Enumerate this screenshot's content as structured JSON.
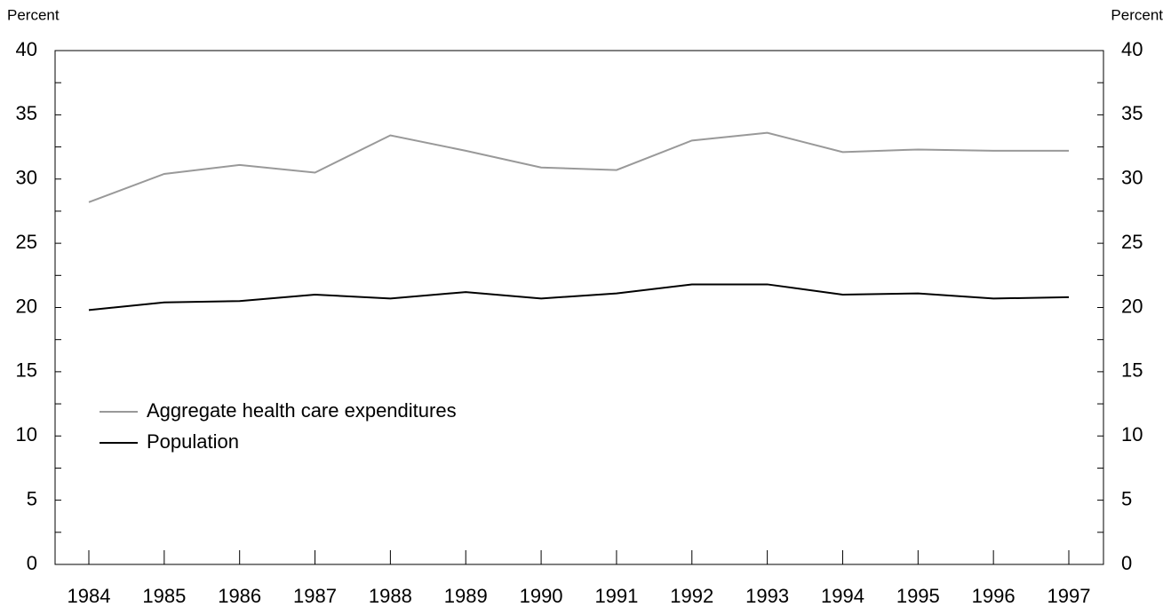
{
  "chart_data": {
    "type": "line",
    "y_label": "Percent",
    "y2_label": "Percent",
    "categories": [
      "1984",
      "1985",
      "1986",
      "1987",
      "1988",
      "1989",
      "1990",
      "1991",
      "1992",
      "1993",
      "1994",
      "1995",
      "1996",
      "1997"
    ],
    "series": [
      {
        "name": "Aggregate health care expenditures",
        "color": "#999999",
        "values": [
          28.2,
          30.4,
          31.1,
          30.5,
          33.4,
          32.2,
          30.9,
          30.7,
          33.0,
          33.6,
          32.1,
          32.3,
          32.2,
          32.2
        ]
      },
      {
        "name": "Population",
        "color": "#000000",
        "values": [
          19.8,
          20.4,
          20.5,
          21.0,
          20.7,
          21.2,
          20.7,
          21.1,
          21.8,
          21.8,
          21.0,
          21.1,
          20.7,
          20.8
        ]
      }
    ],
    "ylim": [
      0,
      40
    ],
    "yticks": [
      0,
      5,
      10,
      15,
      20,
      25,
      30,
      35,
      40
    ],
    "y2lim": [
      0,
      40
    ],
    "y2ticks": [
      0,
      5,
      10,
      15,
      20,
      25,
      30,
      35,
      40
    ],
    "grid": false,
    "legend": "lower-left"
  }
}
